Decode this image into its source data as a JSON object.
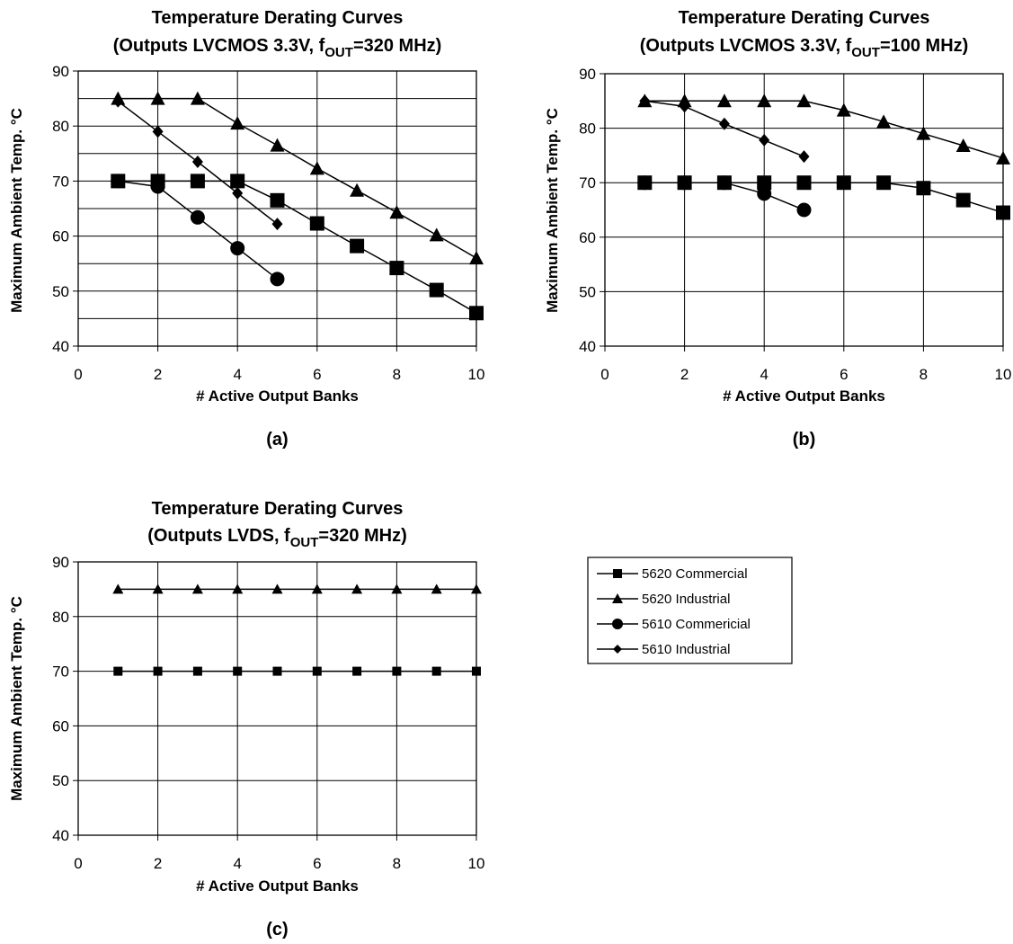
{
  "chart_data": [
    {
      "type": "line",
      "title_line1": "Temperature Derating Curves",
      "title_line2": {
        "pre": "(Outputs LVCMOS 3.3V, f",
        "sub": "OUT",
        "post": "=320 MHz)"
      },
      "xlabel": "# Active Output Banks",
      "ylabel": "Maximum Ambient Temp. °C",
      "caption": "(a)",
      "xlim": [
        0,
        10
      ],
      "ylim": [
        40,
        90
      ],
      "x_ticks": [
        "0",
        "2",
        "4",
        "6",
        "8",
        "10"
      ],
      "y_ticks": [
        "40",
        "50",
        "60",
        "70",
        "80",
        "90"
      ],
      "y_grid": [
        45,
        50,
        55,
        60,
        65,
        70,
        75,
        80,
        85,
        90
      ],
      "x_grid": [
        2,
        4,
        6,
        8,
        10
      ],
      "series": [
        {
          "name": "5620 Commercial",
          "marker": "square",
          "x": [
            1,
            2,
            3,
            4,
            5,
            6,
            7,
            8,
            9,
            10
          ],
          "y": [
            70,
            70,
            70,
            70,
            66.5,
            62.3,
            58.2,
            54.2,
            50.2,
            46
          ]
        },
        {
          "name": "5620 Industrial",
          "marker": "triangle",
          "x": [
            1,
            2,
            3,
            4,
            5,
            6,
            7,
            8,
            9,
            10
          ],
          "y": [
            85,
            85,
            85,
            80.5,
            76.5,
            72.3,
            68.3,
            64.3,
            60.2,
            56
          ]
        },
        {
          "name": "5610 Commericial",
          "marker": "circle",
          "x": [
            1,
            2,
            3,
            4,
            5
          ],
          "y": [
            70,
            69,
            63.4,
            57.8,
            52.2
          ]
        },
        {
          "name": "5610 Industrial",
          "marker": "diamond",
          "x": [
            1,
            2,
            3,
            4,
            5
          ],
          "y": [
            84.5,
            79,
            73.5,
            67.8,
            62.2
          ]
        }
      ]
    },
    {
      "type": "line",
      "title_line1": "Temperature Derating Curves",
      "title_line2": {
        "pre": "(Outputs LVCMOS 3.3V, f",
        "sub": "OUT",
        "post": "=100 MHz)"
      },
      "xlabel": "# Active Output Banks",
      "ylabel": "Maximum Ambient Temp. °C",
      "caption": "(b)",
      "xlim": [
        0,
        10
      ],
      "ylim": [
        40,
        90
      ],
      "x_ticks": [
        "0",
        "2",
        "4",
        "6",
        "8",
        "10"
      ],
      "y_ticks": [
        "40",
        "50",
        "60",
        "70",
        "80",
        "90"
      ],
      "y_grid": [
        50,
        60,
        70,
        80,
        90
      ],
      "x_grid": [
        2,
        4,
        6,
        8,
        10
      ],
      "series": [
        {
          "name": "5620 Commercial",
          "marker": "square",
          "x": [
            1,
            2,
            3,
            4,
            5,
            6,
            7,
            8,
            9,
            10
          ],
          "y": [
            70,
            70,
            70,
            70,
            70,
            70,
            70,
            69,
            66.8,
            64.5
          ]
        },
        {
          "name": "5620 Industrial",
          "marker": "triangle",
          "x": [
            1,
            2,
            3,
            4,
            5,
            6,
            7,
            8,
            9,
            10
          ],
          "y": [
            85,
            85,
            85,
            85,
            85,
            83.3,
            81.2,
            79,
            76.8,
            74.5
          ]
        },
        {
          "name": "5610 Commericial",
          "marker": "circle",
          "x": [
            1,
            2,
            3,
            4,
            5
          ],
          "y": [
            70,
            70,
            70,
            68,
            65
          ]
        },
        {
          "name": "5610 Industrial",
          "marker": "diamond",
          "x": [
            1,
            2,
            3,
            4,
            5
          ],
          "y": [
            85,
            84,
            80.8,
            77.8,
            74.8
          ]
        }
      ]
    },
    {
      "type": "line",
      "title_line1": "Temperature Derating Curves",
      "title_line2": {
        "pre": "(Outputs LVDS, f",
        "sub": "OUT",
        "post": "=320 MHz)"
      },
      "xlabel": "# Active Output Banks",
      "ylabel": "Maximum Ambient Temp. °C",
      "caption": "(c)",
      "xlim": [
        0,
        10
      ],
      "ylim": [
        40,
        90
      ],
      "x_ticks": [
        "0",
        "2",
        "4",
        "6",
        "8",
        "10"
      ],
      "y_ticks": [
        "40",
        "50",
        "60",
        "70",
        "80",
        "90"
      ],
      "y_grid": [
        50,
        60,
        70,
        80,
        90
      ],
      "x_grid": [
        2,
        4,
        6,
        8,
        10
      ],
      "series": [
        {
          "name": "5620 Commercial",
          "marker": "square-small",
          "x": [
            1,
            2,
            3,
            4,
            5,
            6,
            7,
            8,
            9,
            10
          ],
          "y": [
            70,
            70,
            70,
            70,
            70,
            70,
            70,
            70,
            70,
            70
          ]
        },
        {
          "name": "5620 Industrial",
          "marker": "triangle-small",
          "x": [
            1,
            2,
            3,
            4,
            5,
            6,
            7,
            8,
            9,
            10
          ],
          "y": [
            85,
            85,
            85,
            85,
            85,
            85,
            85,
            85,
            85,
            85
          ]
        }
      ]
    }
  ],
  "legend": {
    "items": [
      {
        "label": "5620 Commercial",
        "marker": "square"
      },
      {
        "label": "5620 Industrial",
        "marker": "triangle"
      },
      {
        "label": "5610 Commericial",
        "marker": "circle"
      },
      {
        "label": "5610 Industrial",
        "marker": "diamond"
      }
    ]
  }
}
